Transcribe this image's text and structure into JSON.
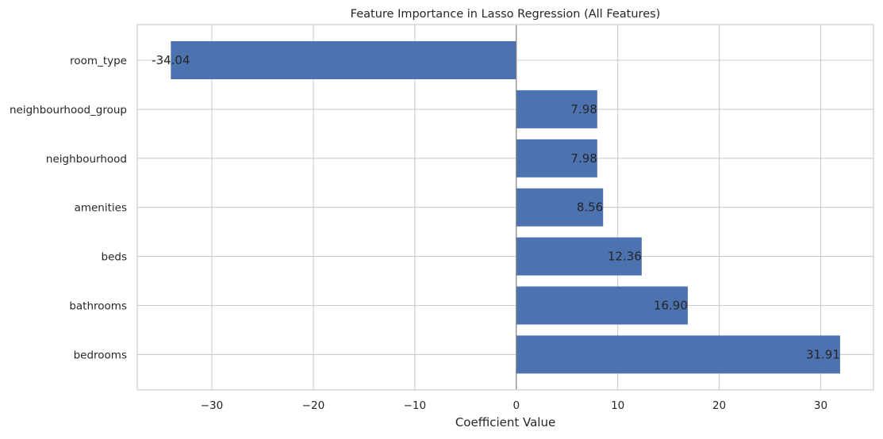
{
  "chart_data": {
    "type": "bar",
    "orientation": "horizontal",
    "title": "Feature Importance in Lasso Regression (All Features)",
    "xlabel": "Coefficient Value",
    "ylabel": "",
    "categories": [
      "room_type",
      "neighbourhood_group",
      "neighbourhood",
      "amenities",
      "beds",
      "bathrooms",
      "bedrooms"
    ],
    "values": [
      -34.04,
      7.98,
      7.98,
      8.56,
      12.36,
      16.9,
      31.91
    ],
    "data_labels": [
      "-34.04",
      "7.98",
      "7.98",
      "8.56",
      "12.36",
      "16.90",
      "31.91"
    ],
    "xlim": [
      -37.35,
      35.2
    ],
    "x_ticks": [
      -30,
      -20,
      -10,
      0,
      10,
      20,
      30
    ],
    "x_tick_labels": [
      "−30",
      "−20",
      "−10",
      "0",
      "10",
      "20",
      "30"
    ],
    "grid": true,
    "zero_line": true,
    "legend": "none",
    "colors": {
      "bar": "#4c72b0",
      "grid": "#cccccc",
      "axes_edge": "#cccccc",
      "zero_line": "#808080",
      "text": "#262626"
    }
  }
}
